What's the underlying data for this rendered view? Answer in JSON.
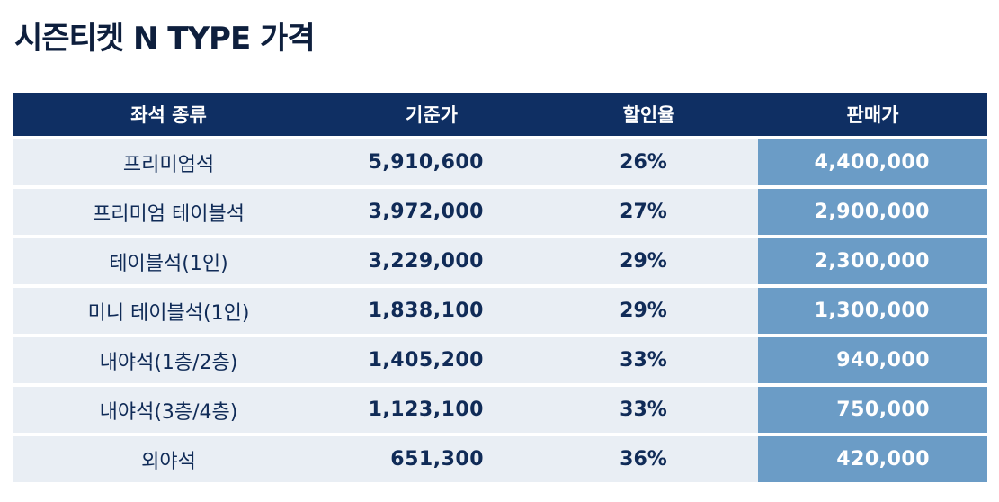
{
  "title": "시즌티켓 N TYPE 가격",
  "colors": {
    "header_bg": "#0f2f63",
    "row_bg": "#e9eef4",
    "sale_bg": "#6b9cc6",
    "text": "#102b57"
  },
  "table": {
    "headers": [
      "좌석 종류",
      "기준가",
      "할인율",
      "판매가"
    ],
    "rows": [
      {
        "seat": "프리미엄석",
        "base_price": "5,910,600",
        "discount": "26%",
        "sale_price": "4,400,000"
      },
      {
        "seat": "프리미엄 테이블석",
        "base_price": "3,972,000",
        "discount": "27%",
        "sale_price": "2,900,000"
      },
      {
        "seat": "테이블석(1인)",
        "base_price": "3,229,000",
        "discount": "29%",
        "sale_price": "2,300,000"
      },
      {
        "seat": "미니 테이블석(1인)",
        "base_price": "1,838,100",
        "discount": "29%",
        "sale_price": "1,300,000"
      },
      {
        "seat": "내야석(1층/2층)",
        "base_price": "1,405,200",
        "discount": "33%",
        "sale_price": "940,000"
      },
      {
        "seat": "내야석(3층/4층)",
        "base_price": "1,123,100",
        "discount": "33%",
        "sale_price": "750,000"
      },
      {
        "seat": "외야석",
        "base_price": "651,300",
        "discount": "36%",
        "sale_price": "420,000"
      }
    ]
  }
}
